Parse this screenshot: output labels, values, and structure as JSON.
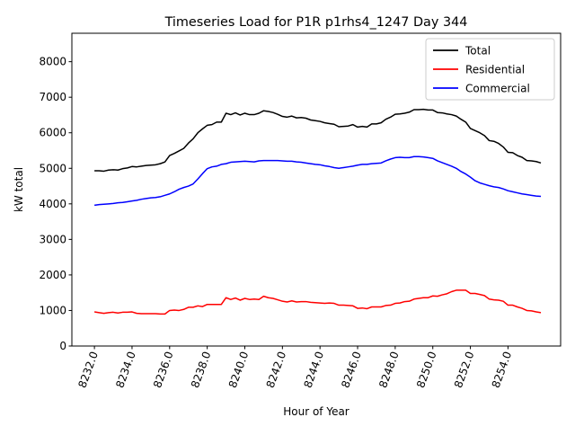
{
  "chart_data": {
    "type": "line",
    "title": "Timeseries Load for P1R p1rhs4_1247  Day 344",
    "xlabel": "Hour of Year",
    "ylabel": "kW total",
    "xlim": [
      8230.8,
      8256.8
    ],
    "ylim": [
      0,
      8800
    ],
    "xticks": [
      8232,
      8234,
      8236,
      8238,
      8240,
      8242,
      8244,
      8246,
      8248,
      8250,
      8252,
      8254
    ],
    "xtick_labels": [
      "8232.0",
      "8234.0",
      "8236.0",
      "8238.0",
      "8240.0",
      "8242.0",
      "8244.0",
      "8246.0",
      "8248.0",
      "8250.0",
      "8252.0",
      "8254.0"
    ],
    "yticks": [
      0,
      1000,
      2000,
      3000,
      4000,
      5000,
      6000,
      7000,
      8000
    ],
    "ytick_labels": [
      "0",
      "1000",
      "2000",
      "3000",
      "4000",
      "5000",
      "6000",
      "7000",
      "8000"
    ],
    "legend_position": "top-right",
    "x_start": 8232.0,
    "x_step": 0.25,
    "series": [
      {
        "name": "Total",
        "color": "#000000",
        "values": [
          4930,
          4930,
          4920,
          4950,
          4960,
          4950,
          4990,
          5010,
          5050,
          5040,
          5060,
          5080,
          5090,
          5100,
          5130,
          5180,
          5360,
          5420,
          5490,
          5560,
          5710,
          5830,
          6000,
          6110,
          6210,
          6230,
          6300,
          6300,
          6550,
          6510,
          6560,
          6500,
          6550,
          6510,
          6510,
          6550,
          6620,
          6600,
          6570,
          6520,
          6460,
          6440,
          6470,
          6420,
          6430,
          6410,
          6360,
          6340,
          6320,
          6280,
          6260,
          6240,
          6170,
          6180,
          6190,
          6230,
          6160,
          6180,
          6160,
          6250,
          6250,
          6280,
          6380,
          6440,
          6520,
          6530,
          6550,
          6580,
          6650,
          6650,
          6660,
          6640,
          6640,
          6570,
          6560,
          6530,
          6510,
          6470,
          6380,
          6300,
          6120,
          6060,
          6000,
          5920,
          5780,
          5760,
          5700,
          5600,
          5450,
          5440,
          5360,
          5310,
          5220,
          5210,
          5190,
          5150
        ]
      },
      {
        "name": "Residential",
        "color": "#ff0000",
        "values": [
          960,
          940,
          920,
          940,
          950,
          930,
          950,
          950,
          960,
          920,
          910,
          910,
          910,
          910,
          900,
          900,
          1000,
          1010,
          1000,
          1030,
          1090,
          1090,
          1130,
          1110,
          1170,
          1170,
          1170,
          1170,
          1360,
          1310,
          1350,
          1290,
          1340,
          1310,
          1320,
          1310,
          1400,
          1360,
          1340,
          1300,
          1260,
          1240,
          1270,
          1240,
          1250,
          1250,
          1230,
          1220,
          1210,
          1200,
          1210,
          1200,
          1150,
          1150,
          1140,
          1130,
          1060,
          1070,
          1050,
          1100,
          1100,
          1100,
          1140,
          1150,
          1200,
          1210,
          1250,
          1260,
          1320,
          1340,
          1360,
          1360,
          1410,
          1400,
          1440,
          1470,
          1530,
          1570,
          1570,
          1570,
          1480,
          1480,
          1450,
          1420,
          1320,
          1300,
          1290,
          1260,
          1150,
          1150,
          1100,
          1060,
          1000,
          990,
          960,
          940
        ]
      },
      {
        "name": "Commercial",
        "color": "#0000ff",
        "values": [
          3960,
          3980,
          3990,
          4000,
          4010,
          4030,
          4040,
          4060,
          4080,
          4100,
          4130,
          4150,
          4170,
          4180,
          4200,
          4240,
          4280,
          4340,
          4410,
          4460,
          4500,
          4560,
          4700,
          4850,
          4990,
          5040,
          5060,
          5110,
          5130,
          5170,
          5180,
          5190,
          5200,
          5190,
          5180,
          5210,
          5220,
          5220,
          5220,
          5220,
          5210,
          5200,
          5200,
          5180,
          5170,
          5150,
          5130,
          5110,
          5100,
          5070,
          5050,
          5020,
          5000,
          5020,
          5040,
          5060,
          5090,
          5110,
          5110,
          5130,
          5140,
          5150,
          5210,
          5260,
          5300,
          5310,
          5300,
          5300,
          5330,
          5330,
          5320,
          5300,
          5280,
          5210,
          5160,
          5110,
          5060,
          5000,
          4910,
          4840,
          4750,
          4650,
          4590,
          4550,
          4510,
          4480,
          4460,
          4420,
          4370,
          4340,
          4310,
          4280,
          4260,
          4240,
          4220,
          4210
        ]
      }
    ]
  }
}
